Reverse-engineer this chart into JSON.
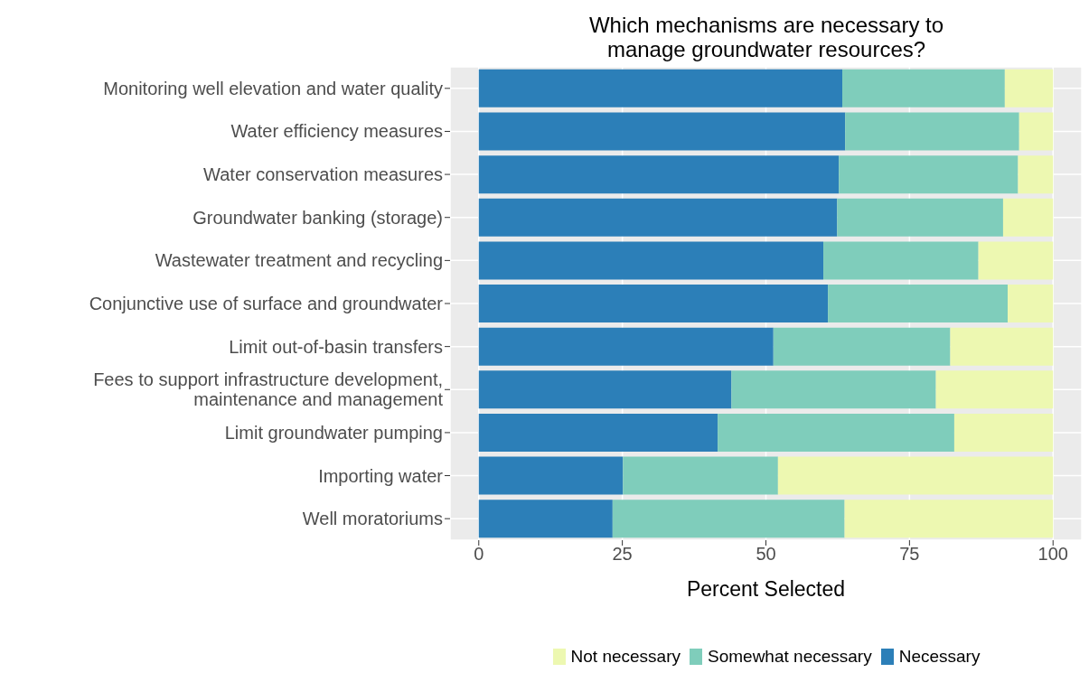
{
  "chart_data": {
    "type": "bar",
    "orientation": "horizontal",
    "stacked": true,
    "title": "Which mechanisms are necessary to\nmanage groundwater resources?",
    "xlabel": "Percent Selected",
    "categories": [
      "Monitoring well elevation and water quality",
      "Water efficiency measures",
      "Water conservation measures",
      "Groundwater banking (storage)",
      "Wastewater treatment and recycling",
      "Conjunctive use of surface and groundwater",
      "Limit out-of-basin transfers",
      "Fees to support infrastructure development,\nmaintenance and management",
      "Limit groundwater pumping",
      "Importing water",
      "Well moratoriums"
    ],
    "series": [
      {
        "name": "Necessary",
        "color": "#2c7fb8",
        "values": [
          63.3,
          63.8,
          62.7,
          62.4,
          60.0,
          60.8,
          51.3,
          44.0,
          41.6,
          25.1,
          23.3
        ]
      },
      {
        "name": "Somewhat necessary",
        "color": "#7fcdbb",
        "values": [
          28.3,
          30.3,
          31.2,
          28.9,
          27.0,
          31.3,
          30.8,
          35.6,
          41.2,
          27.0,
          40.4
        ]
      },
      {
        "name": "Not necessary",
        "color": "#edf8b1",
        "values": [
          8.4,
          5.9,
          6.1,
          8.7,
          13.0,
          7.9,
          17.9,
          20.4,
          17.2,
          47.9,
          36.3
        ]
      }
    ],
    "xlim": [
      -5,
      105
    ],
    "xticks": [
      0,
      25,
      50,
      75,
      100
    ],
    "grid": true,
    "legend": "bottom"
  }
}
